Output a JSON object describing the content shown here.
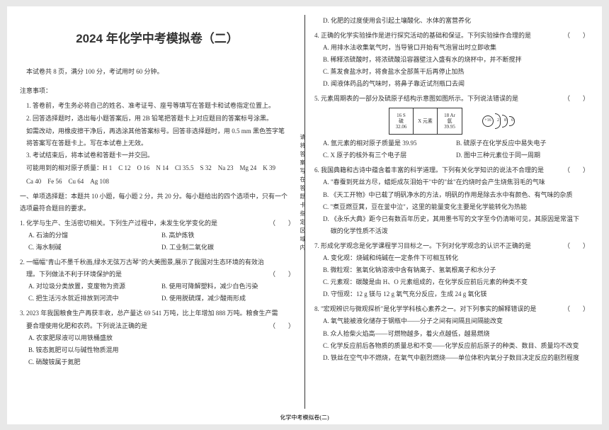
{
  "title": "2024 年化学中考模拟卷（二）",
  "meta": "本试卷共 8 页，满分 100 分，考试用时 60 分钟。",
  "notice_head": "注意事项：",
  "notices": [
    "1. 答卷前，考生务必将自己的姓名、准考证号、座号等填写在答题卡和试卷指定位置上。",
    "2. 回答选择题时，选出每小题答案后，用 2B 铅笔把答题卡上对应题目的答案标号涂黑。",
    "如需改动，用橡皮擦干净后，再选涂其他答案标号。回答非选择题时，用 0.5 mm 黑色签字笔",
    "将答案写在答题卡上。写在本试卷上无效。",
    "3. 考试结束后，将本试卷和答题卡一并交回。",
    "可能用到的相对原子质量：H 1　C 12　O 16　N 14　Cl 35.5　S 32　Na 23　Mg 24　K 39",
    "Ca 40　Fe 56　Cu 64　Ag 108"
  ],
  "part1_head": "一、单项选择题：本题共 10 小题，每小题 2 分，共 20 分。每小题给出的四个选项中，只有一个",
  "part1_head2": "选项最符合题目的要求。",
  "q1": {
    "stem": "1. 化学与生产、生活密切相关。下列生产过程中，未发生化学变化的是",
    "a": "A. 石油的分馏",
    "b": "B. 高炉炼铁",
    "c": "C. 海水制碱",
    "d": "D. 工业制二氧化碳"
  },
  "q2": {
    "stem1": "2. 一幅幅\"青山不墨千秋画,绿水无弦万古琴\"的大美图景,展示了我国对生态环境的有效治",
    "stem2": "理。下列做法不利于环境保护的是",
    "a": "A. 对垃圾分类放置，变废物为资源",
    "b": "B. 使用可降解塑料，减少白色污染",
    "c": "C. 把生活污水就近排放到河流中",
    "d": "D. 使用脱硫煤，减少酸雨形成"
  },
  "q3": {
    "stem1": "3. 2023 年我国粮食生产再获丰收，总产量达 69 541 万吨，比上年增加 888 万吨。粮食生产需",
    "stem2": "要合理使用化肥和农药。下列说法正确的是",
    "a": "A. 农家肥尿液可以用铁桶盛放",
    "b": "B. 铵态氮肥可以与碱性物质混用",
    "c": "C. 硝酸铵属于氮肥"
  },
  "q3d": "D. 化肥的过度使用会引起土壤酸化、水体的富营养化",
  "q4": {
    "stem": "4. 正确的化学实验操作是进行探究活动的基础和保证。下列实验操作合理的是",
    "a": "A. 用排水法收集氧气时，当导管口开始有气泡冒出时立即收集",
    "b": "B. 稀释浓硫酸时，将浓硫酸沿容器壁注入盛有水的烧杯中，并不断搅拌",
    "c": "C. 蒸发食盐水时，将食盐水全部蒸干后再停止加热",
    "d": "D. 闻液体药品的气味时，将鼻子靠近试剂瓶口去闻"
  },
  "q5": {
    "stem": "5. 元素周期表的一部分及硫原子结构示意图如图所示。下列说法错误的是",
    "cells": [
      {
        "t": "16 S",
        "m": "硫",
        "b": "32.06"
      },
      {
        "t": "",
        "m": "X 元素",
        "b": ""
      },
      {
        "t": "18 Ar",
        "m": "氩",
        "b": "39.95"
      }
    ],
    "nucleus": "+16",
    "shells": [
      "2",
      "8",
      "6"
    ],
    "a": "A. 氩元素的相对原子质量是 39.95",
    "b": "B. 硫原子在化学反应中易失电子",
    "c": "C. X 原子的核外有三个电子层",
    "d": "D. 图中三种元素位于同一周期"
  },
  "q6": {
    "stem": "6. 我国典籍和古诗中蕴含着丰富的科学道理。下列有关化学知识的说法不合理的是",
    "a": "A. \"春蚕到死丝方尽，蜡炬成灰泪始干\"中的\"丝\"在灼烧时会产生烧焦羽毛的气味",
    "b": "B. 《天工开物》中已载了明矾净水的方法，明矾的作用是除去水中有颜色、有气味的杂质",
    "c": "C. \"煮豆燃豆萁，豆在釜中泣\"，这里的能量变化主要是化学能转化为热能",
    "d1": "D. 《永乐大典》距今已有数百年历史，其用墨书写的文字至今仍清晰可见，其原因是常温下",
    "d2": "碳的化学性质不活泼"
  },
  "q7": {
    "stem": "7. 形成化学观念是化学课程学习目标之一。下列对化学观念的认识不正确的是",
    "a": "A. 变化观：烧碱和纯碱在一定条件下可相互转化",
    "b": "B. 微粒观：氢氧化钠溶液中含有钠离子、氢氧根离子和水分子",
    "c": "C. 元素观：碳酸是由 H、O 元素组成的，在化学反应前后元素的种类不变",
    "d": "D. 守恒观：12 g 镁与 12 g 氧气充分反应，生成 24 g 氧化镁"
  },
  "q8": {
    "stem": "8. \"宏观辨识与微观探析\"是化学学科核心素养之一。对下列事实的解释错误的是",
    "a": "A. 氧气能被液化储存于钢瓶中——分子之间有间隔且间隔能改变",
    "b": "B. 众人拾柴火焰高——可燃物越多，着火点越低，越易燃烧",
    "c": "C. 化学反应前后各物质的质量总和不变——化学反应前后原子的种类、数目、质量均不改变",
    "d": "D. 铁丝在空气中不燃烧，在氧气中剧烈燃烧——单位体积内氧分子数目决定反应的剧烈程度"
  },
  "vertical": "请将答案写在答题卡指定区域内",
  "footer": "化学中考模拟卷(二)"
}
